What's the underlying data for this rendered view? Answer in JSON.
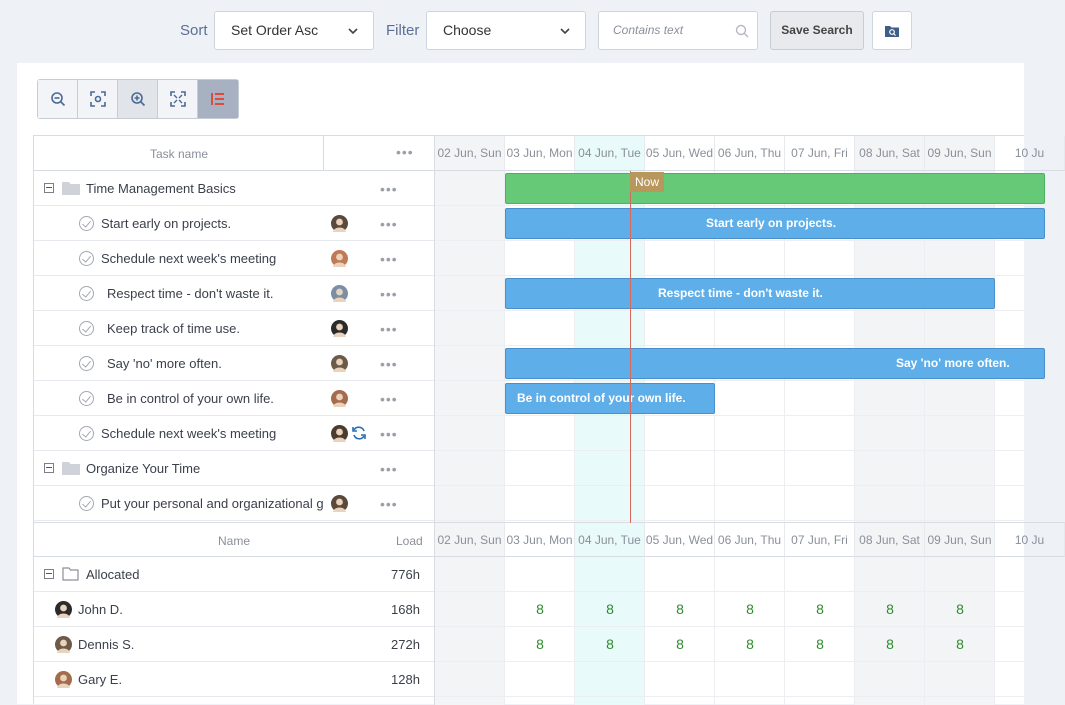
{
  "toolbar": {
    "sort_label": "Sort",
    "sort_value": "Set Order Asc",
    "filter_label": "Filter",
    "filter_value": "Choose",
    "search_placeholder": "Contains text",
    "save_search_label": "Save Search"
  },
  "colors": {
    "accent_blue": "#5eaee9",
    "group_green": "#65c978",
    "now_line": "#d76a5f",
    "load_value": "#2e8b2e"
  },
  "zoom_icons": [
    "zoom-out-icon",
    "zoom-fit-icon",
    "zoom-in-icon",
    "fullscreen-icon",
    "columns-toggle-icon"
  ],
  "tasks_header": {
    "task_name": "Task name"
  },
  "days": [
    "02 Jun, Sun",
    "03 Jun, Mon",
    "04 Jun, Tue",
    "05 Jun, Wed",
    "06 Jun, Thu",
    "07 Jun, Fri",
    "08 Jun, Sat",
    "09 Jun, Sun",
    "10 Ju"
  ],
  "now_label": "Now",
  "tasks": [
    {
      "type": "group",
      "name": "Time Management Basics"
    },
    {
      "type": "task",
      "name": "Start early on projects.",
      "bar": "Start early on projects."
    },
    {
      "type": "task",
      "name": "Schedule next week's meeting"
    },
    {
      "type": "task",
      "name": "Respect time - don't waste it.",
      "bar": "Respect time - don't waste it."
    },
    {
      "type": "task",
      "name": "Keep track of time use."
    },
    {
      "type": "task",
      "name": "Say 'no' more often.",
      "bar": "Say 'no' more often."
    },
    {
      "type": "task",
      "name": "Be in control of your own life.",
      "bar": "Be in control of your own life."
    },
    {
      "type": "task",
      "name": "Schedule next week's meeting"
    },
    {
      "type": "group",
      "name": "Organize Your Time"
    },
    {
      "type": "task",
      "name": "Put your personal and organizational g"
    }
  ],
  "resources_header": {
    "name": "Name",
    "load": "Load"
  },
  "resources": [
    {
      "name": "Allocated",
      "load": "776h",
      "cells": [
        "",
        "",
        "",
        "",
        "",
        "",
        "",
        "",
        ""
      ]
    },
    {
      "name": "John D.",
      "load": "168h",
      "cells": [
        "",
        "8",
        "8",
        "8",
        "8",
        "8",
        "8",
        "8",
        ""
      ]
    },
    {
      "name": "Dennis S.",
      "load": "272h",
      "cells": [
        "",
        "8",
        "8",
        "8",
        "8",
        "8",
        "8",
        "8",
        ""
      ]
    },
    {
      "name": "Gary E.",
      "load": "128h",
      "cells": [
        "",
        "",
        "",
        "",
        "",
        "",
        "",
        "",
        ""
      ]
    }
  ]
}
